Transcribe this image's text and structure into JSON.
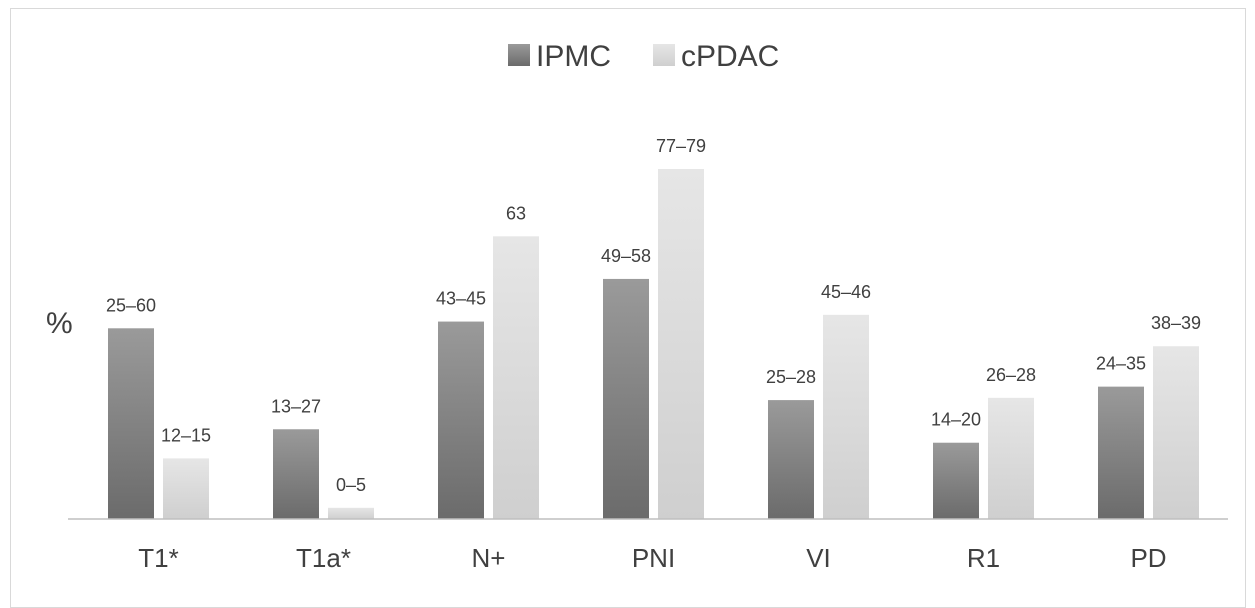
{
  "chart_data": {
    "type": "bar",
    "ylabel": "%",
    "categories": [
      "T1*",
      "T1a*",
      "N+",
      "PNI",
      "VI",
      "R1",
      "PD"
    ],
    "series": [
      {
        "name": "IPMC",
        "color": "#808080",
        "values": [
          42.5,
          20,
          44,
          53.5,
          26.5,
          17,
          29.5
        ],
        "labels": [
          "25–60",
          "13–27",
          "43–45",
          "49–58",
          "25–28",
          "14–20",
          "24–35"
        ]
      },
      {
        "name": "cPDAC",
        "color": "#d9d9d9",
        "values": [
          13.5,
          2.5,
          63,
          78,
          45.5,
          27,
          38.5
        ],
        "labels": [
          "12–15",
          "0–5",
          "63",
          "77–79",
          "45–46",
          "26–28",
          "38–39"
        ]
      }
    ],
    "ylim": [
      0,
      90
    ],
    "legend_position": "top-center",
    "grid": false
  }
}
